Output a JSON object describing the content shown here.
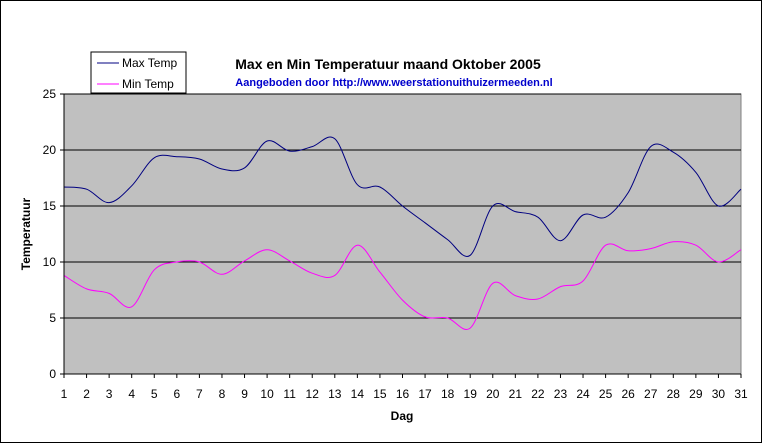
{
  "chart_data": {
    "type": "line",
    "title": "Max en Min Temperatuur maand Oktober 2005",
    "subtitle": "Aangeboden door http://www.weerstationuithuizermeeden.nl",
    "xlabel": "Dag",
    "ylabel": "Temperatuur",
    "ylim": [
      0,
      25
    ],
    "yticks": [
      "0",
      "5",
      "10",
      "15",
      "20",
      "25"
    ],
    "x": [
      1,
      2,
      3,
      4,
      5,
      6,
      7,
      8,
      9,
      10,
      11,
      12,
      13,
      14,
      15,
      16,
      17,
      18,
      19,
      20,
      21,
      22,
      23,
      24,
      25,
      26,
      27,
      28,
      29,
      30,
      31
    ],
    "x_tick_labels": [
      "1",
      "2",
      "3",
      "4",
      "5",
      "6",
      "7",
      "8",
      "9",
      "10",
      "11",
      "12",
      "13",
      "14",
      "15",
      "16",
      "17",
      "18",
      "19",
      "20",
      "21",
      "22",
      "23",
      "24",
      "25",
      "26",
      "27",
      "28",
      "29",
      "30",
      "31"
    ],
    "grid": true,
    "legend_position": "top-left",
    "series": [
      {
        "name": "Max Temp",
        "color": "#000080",
        "values": [
          16.7,
          16.5,
          15.3,
          16.8,
          19.3,
          19.4,
          19.2,
          18.3,
          18.4,
          20.8,
          19.9,
          20.3,
          21.0,
          16.9,
          16.7,
          15.0,
          13.5,
          12.0,
          10.6,
          15.0,
          14.5,
          14.0,
          11.9,
          14.2,
          14.0,
          16.2,
          20.3,
          19.8,
          18.0,
          15.0,
          16.5
        ]
      },
      {
        "name": "Min Temp",
        "color": "#ff00ff",
        "values": [
          8.8,
          7.6,
          7.2,
          6.0,
          9.3,
          10.0,
          10.0,
          8.9,
          10.1,
          11.1,
          10.1,
          9.0,
          8.8,
          11.5,
          9.1,
          6.6,
          5.1,
          5.0,
          4.1,
          8.1,
          7.0,
          6.7,
          7.8,
          8.3,
          11.5,
          11.0,
          11.2,
          11.8,
          11.5,
          10.0,
          11.1
        ]
      }
    ],
    "plot_background": "#c0c0c0"
  }
}
